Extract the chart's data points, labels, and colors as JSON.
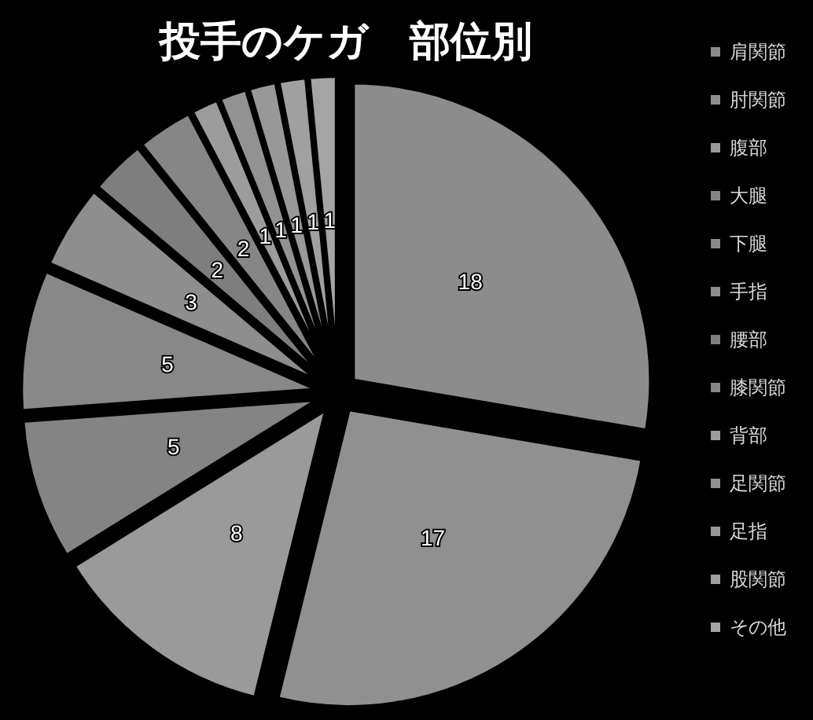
{
  "chart_data": {
    "type": "pie",
    "title": "投手のケガ　部位別",
    "categories": [
      "肩関節",
      "肘関節",
      "腹部",
      "大腿",
      "下腿",
      "手指",
      "腰部",
      "膝関節",
      "背部",
      "足関節",
      "足指",
      "股関節",
      "その他"
    ],
    "values": [
      18,
      17,
      8,
      5,
      5,
      3,
      2,
      2,
      1,
      1,
      1,
      1,
      1
    ],
    "colors": [
      "#8c8c8c",
      "#909090",
      "#9a9a9a",
      "#848484",
      "#888888",
      "#8e8e8e",
      "#7e7e7e",
      "#868686",
      "#9c9c9c",
      "#929292",
      "#989898",
      "#a0a0a0",
      "#a4a4a4"
    ],
    "data_labels": true,
    "legend": "right"
  }
}
